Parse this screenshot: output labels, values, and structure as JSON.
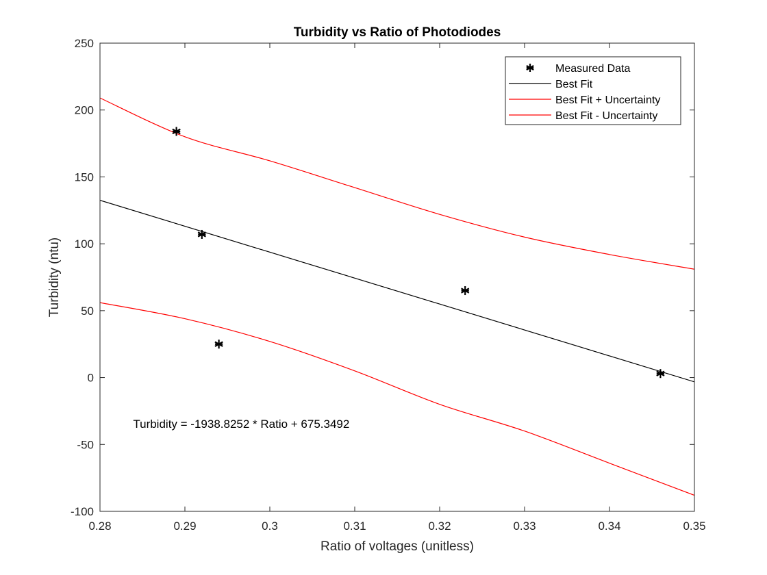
{
  "chart_data": {
    "type": "scatter",
    "title": "Turbidity vs Ratio of Photodiodes",
    "xlabel": "Ratio of voltages (unitless)",
    "ylabel": "Turbidity (ntu)",
    "xlim": [
      0.28,
      0.35
    ],
    "ylim": [
      -100,
      250
    ],
    "xticks": [
      0.28,
      0.29,
      0.3,
      0.31,
      0.32,
      0.33,
      0.34,
      0.35
    ],
    "xtick_labels": [
      "0.28",
      "0.29",
      "0.3",
      "0.31",
      "0.32",
      "0.33",
      "0.34",
      "0.35"
    ],
    "yticks": [
      -100,
      -50,
      0,
      50,
      100,
      150,
      200,
      250
    ],
    "ytick_labels": [
      "-100",
      "-50",
      "0",
      "50",
      "100",
      "150",
      "200",
      "250"
    ],
    "grid": false,
    "legend_position": "top-right",
    "annotation": "Turbidity = -1938.8252 * Ratio + 675.3492",
    "series": [
      {
        "name": "Measured Data",
        "kind": "markers",
        "marker": "asterisk",
        "color": "#000000",
        "x": [
          0.289,
          0.292,
          0.294,
          0.323,
          0.346
        ],
        "y": [
          184,
          107,
          25,
          65,
          3
        ]
      },
      {
        "name": "Best Fit",
        "kind": "line",
        "color": "#000000",
        "slope": -1938.8252,
        "intercept": 675.3492,
        "x": [
          0.28,
          0.35
        ],
        "y": [
          132.5,
          -3.2
        ]
      },
      {
        "name": "Best Fit + Uncertainty",
        "kind": "line",
        "color": "#ff0000",
        "x": [
          0.28,
          0.29,
          0.3,
          0.31,
          0.32,
          0.33,
          0.34,
          0.35
        ],
        "y": [
          209,
          180,
          162,
          142,
          122,
          105,
          92,
          81
        ]
      },
      {
        "name": "Best Fit - Uncertainty",
        "kind": "line",
        "color": "#ff0000",
        "x": [
          0.28,
          0.29,
          0.3,
          0.31,
          0.32,
          0.33,
          0.34,
          0.35
        ],
        "y": [
          56,
          44,
          27,
          5,
          -20,
          -40,
          -64,
          -88
        ]
      }
    ]
  }
}
